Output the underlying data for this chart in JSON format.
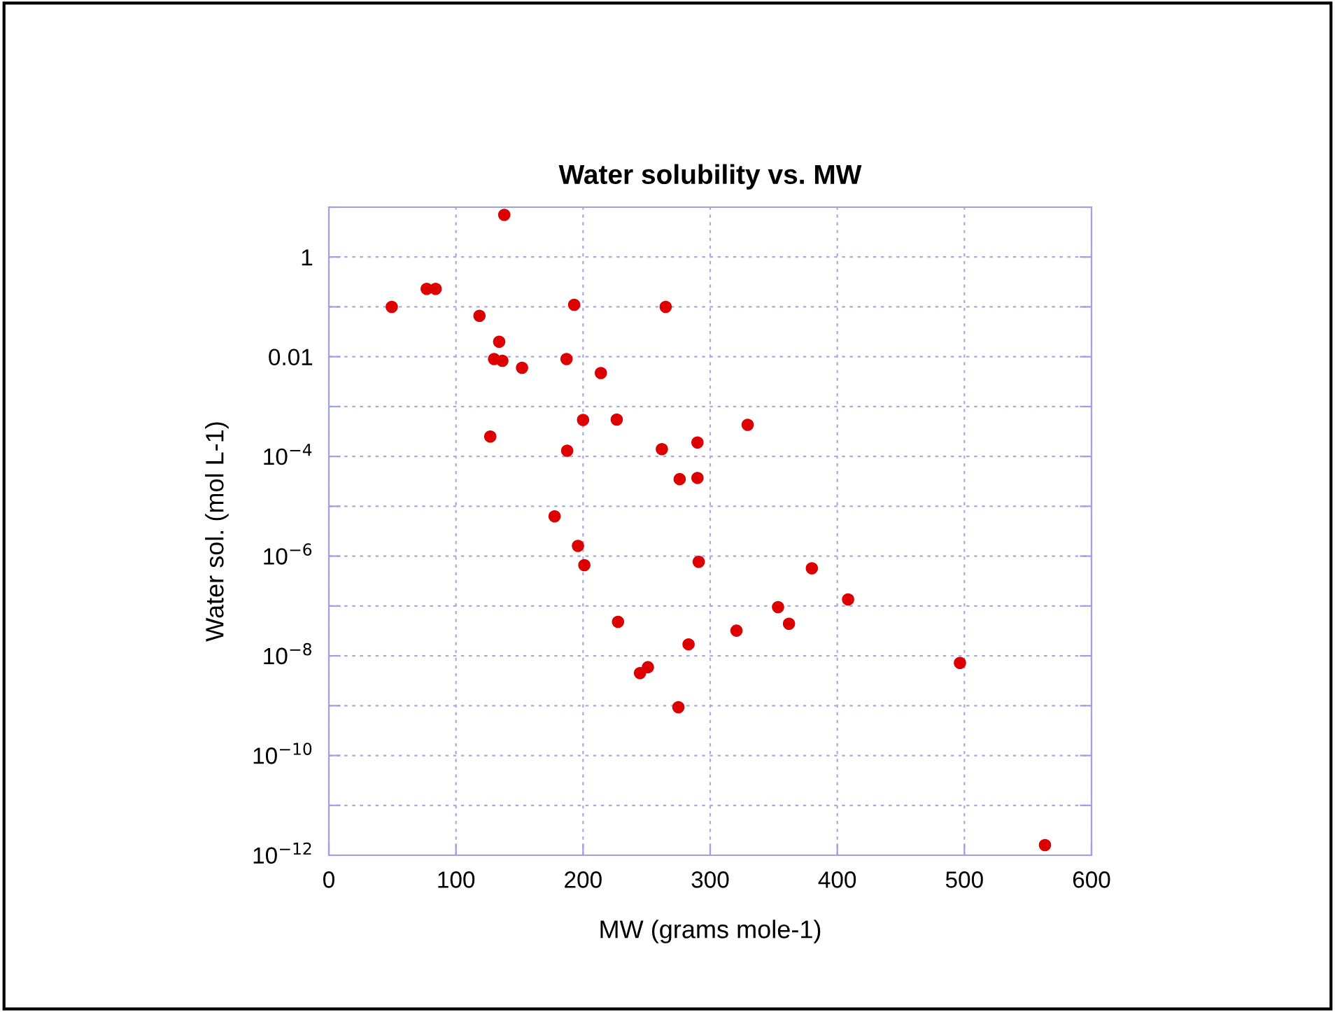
{
  "chart_data": {
    "type": "scatter",
    "title": "Water solubility vs. MW",
    "xlabel": "MW (grams mole-1)",
    "ylabel": "Water sol. (mol L-1)",
    "x": [
      138,
      49.5,
      77,
      84,
      118.5,
      193,
      265,
      134,
      130,
      136.5,
      152,
      187,
      214,
      200,
      226.5,
      127,
      187.5,
      262,
      276,
      177.6,
      329.5,
      290,
      290,
      196,
      201,
      227.5,
      244.8,
      251,
      275,
      291,
      283,
      320.7,
      353.4,
      362,
      380,
      408.5,
      496.5,
      563.4
    ],
    "series": [
      {
        "color": "#dd0000",
        "values": [
          7,
          0.1,
          0.23,
          0.23,
          0.066,
          0.11,
          0.1,
          0.02,
          0.009,
          0.0083,
          0.006,
          0.009,
          0.0047,
          0.00054,
          0.00055,
          0.00025,
          0.00013,
          0.00014,
          3.5e-05,
          6.3e-06,
          0.00043,
          0.00019,
          3.7e-05,
          1.6e-06,
          6.6e-07,
          4.8e-08,
          4.5e-09,
          5.9e-09,
          9.3e-10,
          7.7e-07,
          1.7e-08,
          3.2e-08,
          9.5e-08,
          4.4e-08,
          5.7e-07,
          1.35e-07,
          7.2e-09,
          1.6e-12
        ]
      }
    ],
    "log": "y",
    "marker": "circle",
    "grid": true,
    "xlim": [
      0,
      600
    ],
    "xticks": [
      0,
      100,
      200,
      300,
      400,
      500,
      600
    ],
    "ylim": [
      1e-12,
      10
    ],
    "yticks": [
      {
        "value": 1e-12,
        "label": "10$^{−12}$"
      },
      {
        "value": 1e-11,
        "label": null
      },
      {
        "value": 1e-10,
        "label": "10$^{−10}$"
      },
      {
        "value": 1e-09,
        "label": null
      },
      {
        "value": 1e-08,
        "label": "10$^{−8}$"
      },
      {
        "value": 1e-07,
        "label": null
      },
      {
        "value": 1e-06,
        "label": "10$^{−6}$"
      },
      {
        "value": 1e-05,
        "label": null
      },
      {
        "value": 0.0001,
        "label": "10$^{−4}$"
      },
      {
        "value": 0.001,
        "label": null
      },
      {
        "value": 0.01,
        "label": "0.01"
      },
      {
        "value": 0.1,
        "label": null
      },
      {
        "value": 1,
        "label": "1"
      },
      {
        "value": 10,
        "label": null
      }
    ]
  }
}
